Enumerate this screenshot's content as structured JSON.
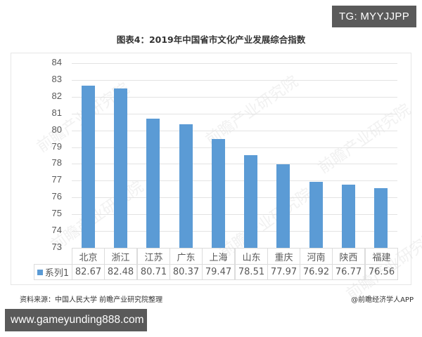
{
  "badges": {
    "top_right": "TG: MYYJJPP",
    "bottom_left": "www.gameyunding888.com"
  },
  "chart_data": {
    "type": "bar",
    "title": "图表4：2019年中国省市文化产业发展综合指数",
    "categories": [
      "北京",
      "浙江",
      "江苏",
      "广东",
      "上海",
      "山东",
      "重庆",
      "河南",
      "陕西",
      "福建"
    ],
    "series": [
      {
        "name": "系列1",
        "values": [
          82.67,
          82.48,
          80.71,
          80.37,
          79.47,
          78.51,
          77.97,
          76.92,
          76.77,
          76.56
        ],
        "color": "#5b9bd5"
      }
    ],
    "values": [
      82.67,
      82.48,
      80.71,
      80.37,
      79.47,
      78.51,
      77.97,
      76.92,
      76.77,
      76.56
    ],
    "xlabel": "",
    "ylabel": "",
    "ylim": [
      73,
      84
    ],
    "yticks": [
      84,
      83,
      82,
      81,
      80,
      79,
      78,
      77,
      76,
      75,
      74,
      73
    ],
    "grid": true,
    "data_table": true,
    "legend_position": "data-table"
  },
  "footer": {
    "source": "资料来源：中国人民大学 前瞻产业研究院整理",
    "credit": "@前瞻经济学人APP"
  },
  "watermark_text": "前瞻产业研究院"
}
